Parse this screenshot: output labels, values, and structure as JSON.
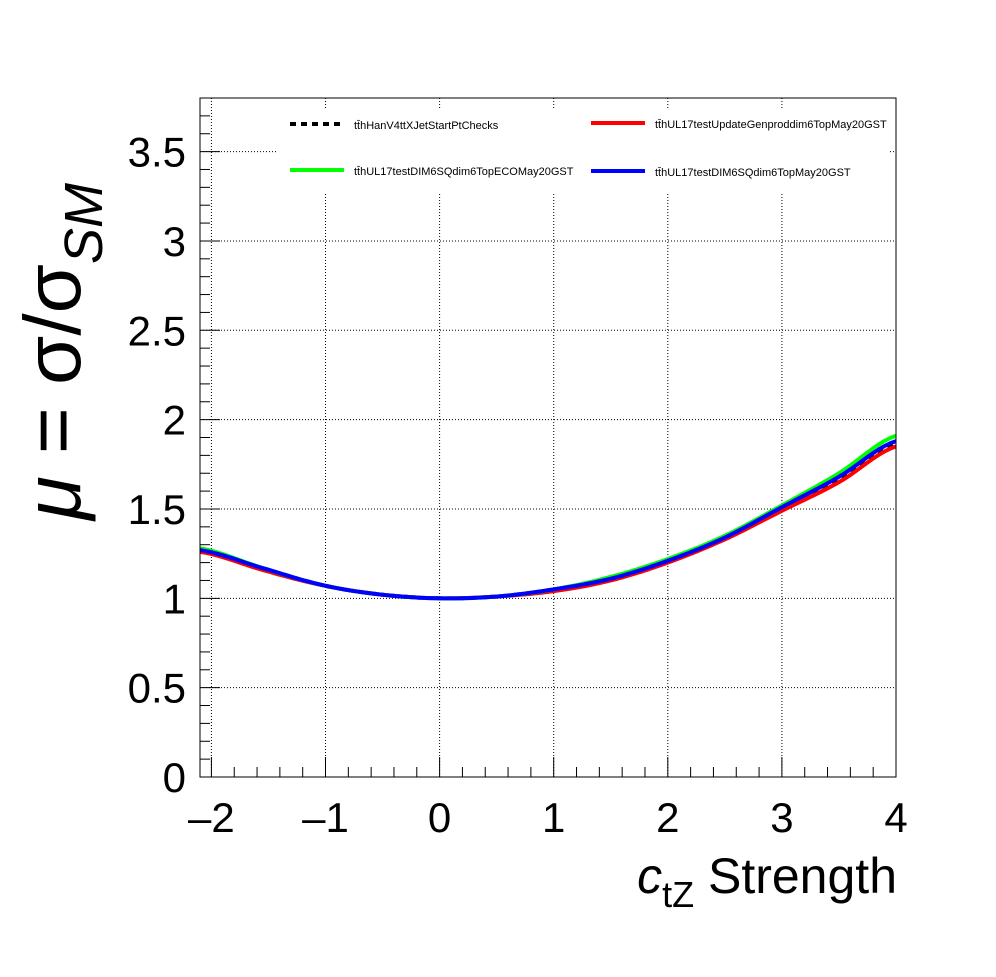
{
  "chart_data": {
    "type": "line",
    "xlabel_main": "c",
    "xlabel_sub": "tZ",
    "xlabel_rest": " Strength",
    "ylabel_mu": "μ",
    "ylabel_eq": " = σ/σ",
    "ylabel_sub": "SM",
    "xlim": [
      -2.1,
      4
    ],
    "ylim": [
      0,
      3.8
    ],
    "xticks": [
      -2,
      -1,
      0,
      1,
      2,
      3,
      4
    ],
    "xtick_labels": [
      "–2",
      "–1",
      "0",
      "1",
      "2",
      "3",
      "4"
    ],
    "yticks": [
      0,
      0.5,
      1,
      1.5,
      2,
      2.5,
      3,
      3.5
    ],
    "ytick_labels": [
      "0",
      "0.5",
      "1",
      "1.5",
      "2",
      "2.5",
      "3",
      "3.5"
    ],
    "grid": true,
    "legend_position": "top",
    "series": [
      {
        "name": "tt̄hHanV4ttXJetStartPtChecks",
        "color": "#000000",
        "style": "dashed",
        "x": [
          -2.1,
          -1.5,
          -1,
          -0.5,
          0,
          0.5,
          1,
          1.5,
          2,
          2.5,
          3,
          3.5,
          4
        ],
        "y": [
          1.27,
          1.16,
          1.07,
          1.02,
          1.0,
          1.01,
          1.05,
          1.11,
          1.21,
          1.34,
          1.5,
          1.67,
          1.87
        ]
      },
      {
        "name": "tt̄hUL17testUpdateGenproddim6TopMay20GST",
        "color": "#ff0000",
        "style": "solid",
        "x": [
          -2.1,
          -1.5,
          -1,
          -0.5,
          0,
          0.5,
          1,
          1.5,
          2,
          2.5,
          3,
          3.5,
          4
        ],
        "y": [
          1.26,
          1.15,
          1.07,
          1.02,
          1.0,
          1.01,
          1.04,
          1.1,
          1.2,
          1.33,
          1.49,
          1.65,
          1.85
        ]
      },
      {
        "name": "tt̄hUL17testDIM6SQdim6TopECOMay20GST",
        "color": "#00ff00",
        "style": "solid",
        "x": [
          -2.1,
          -1.5,
          -1,
          -0.5,
          0,
          0.5,
          1,
          1.5,
          2,
          2.5,
          3,
          3.5,
          4
        ],
        "y": [
          1.28,
          1.16,
          1.07,
          1.02,
          1.0,
          1.01,
          1.05,
          1.12,
          1.22,
          1.35,
          1.52,
          1.7,
          1.91
        ]
      },
      {
        "name": "tt̄hUL17testDIM6SQdim6TopMay20GST",
        "color": "#0000ff",
        "style": "solid",
        "x": [
          -2.1,
          -1.5,
          -1,
          -0.5,
          0,
          0.5,
          1,
          1.5,
          2,
          2.5,
          3,
          3.5,
          4
        ],
        "y": [
          1.27,
          1.16,
          1.07,
          1.02,
          1.0,
          1.01,
          1.05,
          1.11,
          1.21,
          1.34,
          1.51,
          1.68,
          1.88
        ]
      }
    ]
  }
}
